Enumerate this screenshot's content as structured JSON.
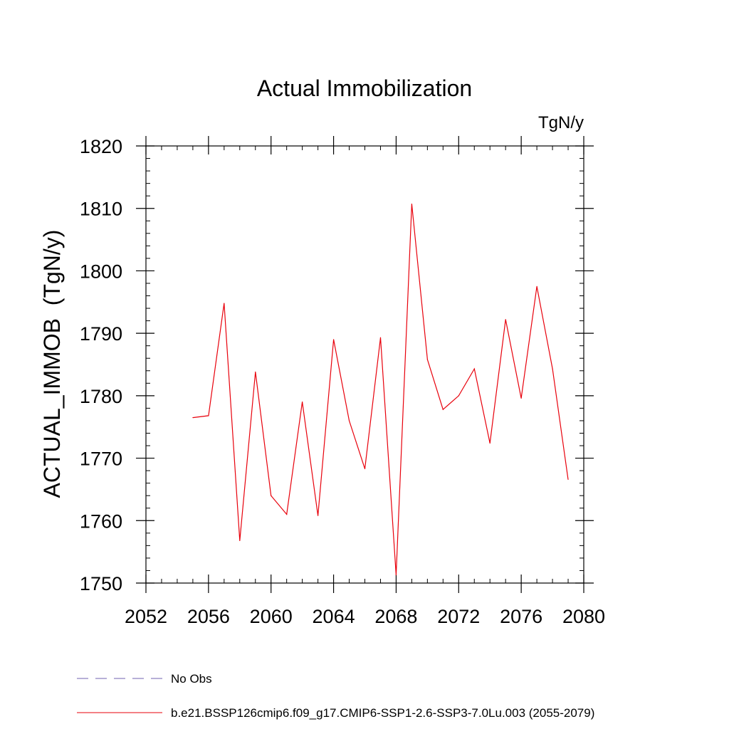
{
  "chart_data": {
    "type": "line",
    "title": "Actual Immobilization",
    "units_label": "TgN/y",
    "ylabel": "ACTUAL_IMMOB  (TgN/y)",
    "xlabel": "",
    "xlim": [
      2052,
      2080
    ],
    "ylim": [
      1750,
      1820
    ],
    "x_ticks": [
      2052,
      2056,
      2060,
      2064,
      2068,
      2072,
      2076,
      2080
    ],
    "y_ticks": [
      1750,
      1760,
      1770,
      1780,
      1790,
      1800,
      1810,
      1820
    ],
    "grid": false,
    "legend_position": "bottom-left",
    "series": [
      {
        "name": "b.e21.BSSP126cmip6.f09_g17.CMIP6-SSP1-2.6-SSP3-7.0Lu.003 (2055-2079)",
        "color": "#e8000b",
        "style": "solid",
        "x": [
          2055,
          2056,
          2057,
          2058,
          2059,
          2060,
          2061,
          2062,
          2063,
          2064,
          2065,
          2066,
          2067,
          2068,
          2069,
          2070,
          2071,
          2072,
          2073,
          2074,
          2075,
          2076,
          2077,
          2078,
          2079
        ],
        "values": [
          1776.5,
          1776.8,
          1794.8,
          1756.8,
          1783.8,
          1764.0,
          1761.0,
          1779.0,
          1760.8,
          1789.0,
          1776.0,
          1768.3,
          1789.3,
          1751.3,
          1810.7,
          1785.8,
          1777.8,
          1780.0,
          1784.3,
          1772.4,
          1792.2,
          1779.6,
          1797.5,
          1784.3,
          1766.6
        ]
      }
    ],
    "legend": [
      {
        "label": "No Obs",
        "color": "#7060b0",
        "style": "dashed"
      },
      {
        "label": "b.e21.BSSP126cmip6.f09_g17.CMIP6-SSP1-2.6-SSP3-7.0Lu.003 (2055-2079)",
        "color": "#e8000b",
        "style": "solid"
      }
    ]
  }
}
